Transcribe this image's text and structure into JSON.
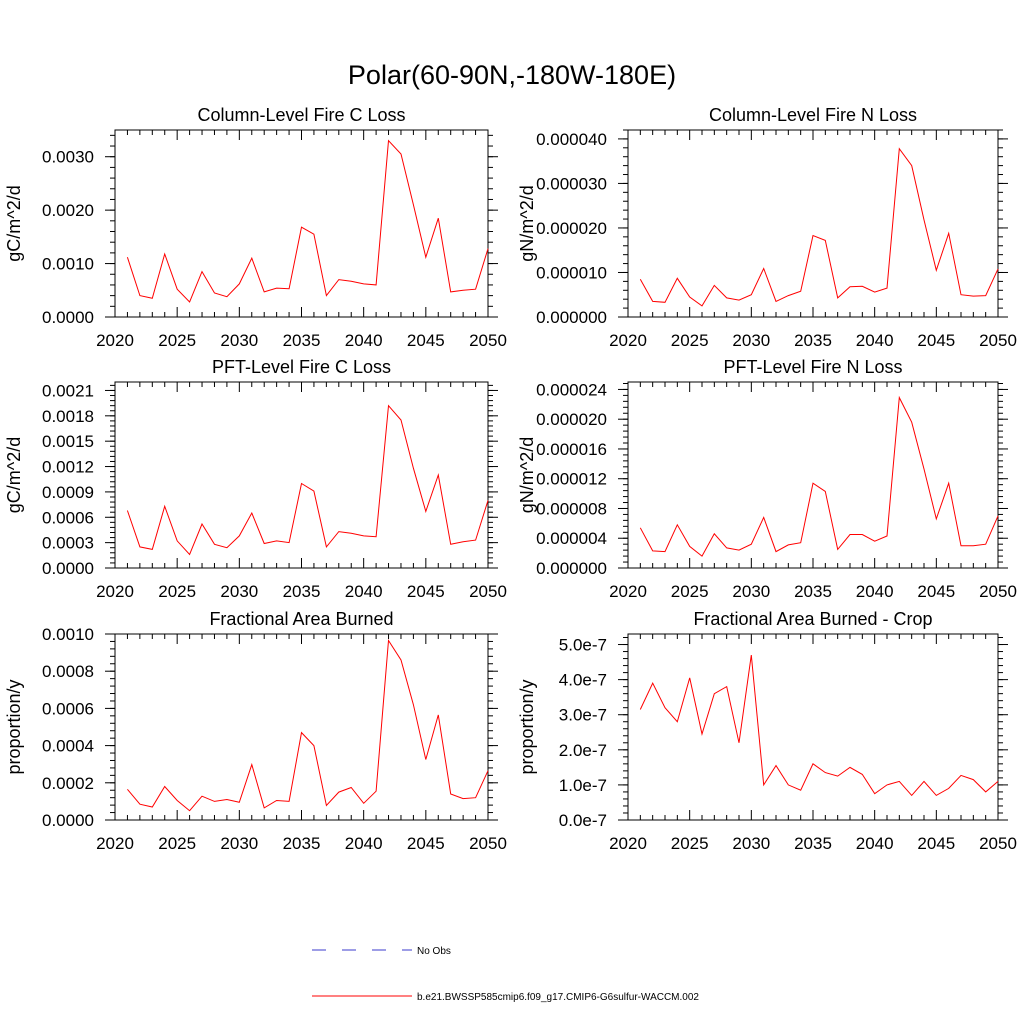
{
  "figure": {
    "title": "Polar(60-90N,-180W-180E)"
  },
  "legend": {
    "entries": [
      {
        "label": "No Obs",
        "color": "#3b3bcc",
        "style": "dashed"
      },
      {
        "label": "b.e21.BWSSP585cmip6.f09_g17.CMIP6-G6sulfur-WACCM.002",
        "color": "#ff0000",
        "style": "solid"
      }
    ]
  },
  "chart_data": [
    {
      "type": "line",
      "title": "Column-Level Fire C Loss",
      "ylabel": "gC/m^2/d",
      "xlim": [
        2020,
        2050
      ],
      "ylim": [
        0,
        0.0035
      ],
      "xticks": [
        2020,
        2025,
        2030,
        2035,
        2040,
        2045,
        2050
      ],
      "xtick_labels": [
        "2020",
        "2025",
        "2030",
        "2035",
        "2040",
        "2045",
        "2050"
      ],
      "yticks": [
        0,
        0.001,
        0.002,
        0.003
      ],
      "ytick_labels": [
        "0.0000",
        "0.0010",
        "0.0020",
        "0.0030"
      ],
      "x": [
        2021,
        2022,
        2023,
        2024,
        2025,
        2026,
        2027,
        2028,
        2029,
        2030,
        2031,
        2032,
        2033,
        2034,
        2035,
        2036,
        2037,
        2038,
        2039,
        2040,
        2041,
        2042,
        2043,
        2044,
        2045,
        2046,
        2047,
        2048,
        2049,
        2050
      ],
      "series": [
        {
          "color": "#ff0000",
          "values": [
            0.00112,
            0.0004,
            0.00035,
            0.00118,
            0.00052,
            0.00028,
            0.00085,
            0.00045,
            0.00038,
            0.00062,
            0.0011,
            0.00047,
            0.00054,
            0.00053,
            0.00168,
            0.00155,
            0.0004,
            0.0007,
            0.00067,
            0.00062,
            0.0006,
            0.0033,
            0.00305,
            0.0021,
            0.00112,
            0.00185,
            0.00047,
            0.0005,
            0.00052,
            0.00128
          ]
        }
      ]
    },
    {
      "type": "line",
      "title": "Column-Level Fire N Loss",
      "ylabel": "gN/m^2/d",
      "xlim": [
        2020,
        2050
      ],
      "ylim": [
        0,
        4.2e-05
      ],
      "xticks": [
        2020,
        2025,
        2030,
        2035,
        2040,
        2045,
        2050
      ],
      "xtick_labels": [
        "2020",
        "2025",
        "2030",
        "2035",
        "2040",
        "2045",
        "2050"
      ],
      "yticks": [
        0,
        1e-05,
        2e-05,
        3e-05,
        4e-05
      ],
      "ytick_labels": [
        "0.000000",
        "0.000010",
        "0.000020",
        "0.000030",
        "0.000040"
      ],
      "x": [
        2021,
        2022,
        2023,
        2024,
        2025,
        2026,
        2027,
        2028,
        2029,
        2030,
        2031,
        2032,
        2033,
        2034,
        2035,
        2036,
        2037,
        2038,
        2039,
        2040,
        2041,
        2042,
        2043,
        2044,
        2045,
        2046,
        2047,
        2048,
        2049,
        2050
      ],
      "series": [
        {
          "color": "#ff0000",
          "values": [
            8.5e-06,
            3.5e-06,
            3.3e-06,
            8.7e-06,
            4.5e-06,
            2.5e-06,
            7.1e-06,
            4.3e-06,
            3.8e-06,
            5e-06,
            1.09e-05,
            3.5e-06,
            4.8e-06,
            5.8e-06,
            1.83e-05,
            1.72e-05,
            4.3e-06,
            6.8e-06,
            6.9e-06,
            5.6e-06,
            6.5e-06,
            3.78e-05,
            3.4e-05,
            2.18e-05,
            1.05e-05,
            1.88e-05,
            5e-06,
            4.7e-06,
            4.8e-06,
            1.08e-05
          ]
        }
      ]
    },
    {
      "type": "line",
      "title": "PFT-Level Fire C Loss",
      "ylabel": "gC/m^2/d",
      "xlim": [
        2020,
        2050
      ],
      "ylim": [
        0,
        0.0022
      ],
      "xticks": [
        2020,
        2025,
        2030,
        2035,
        2040,
        2045,
        2050
      ],
      "xtick_labels": [
        "2020",
        "2025",
        "2030",
        "2035",
        "2040",
        "2045",
        "2050"
      ],
      "yticks": [
        0,
        0.0003,
        0.0006,
        0.0009,
        0.0012,
        0.0015,
        0.0018,
        0.0021
      ],
      "ytick_labels": [
        "0.0000",
        "0.0003",
        "0.0006",
        "0.0009",
        "0.0012",
        "0.0015",
        "0.0018",
        "0.0021"
      ],
      "x": [
        2021,
        2022,
        2023,
        2024,
        2025,
        2026,
        2027,
        2028,
        2029,
        2030,
        2031,
        2032,
        2033,
        2034,
        2035,
        2036,
        2037,
        2038,
        2039,
        2040,
        2041,
        2042,
        2043,
        2044,
        2045,
        2046,
        2047,
        2048,
        2049,
        2050
      ],
      "series": [
        {
          "color": "#ff0000",
          "values": [
            0.00068,
            0.00025,
            0.00022,
            0.00073,
            0.00032,
            0.00016,
            0.00052,
            0.00028,
            0.00024,
            0.00038,
            0.00065,
            0.00029,
            0.00032,
            0.0003,
            0.001,
            0.00091,
            0.00025,
            0.00043,
            0.00041,
            0.00038,
            0.00037,
            0.00192,
            0.00175,
            0.00118,
            0.00067,
            0.0011,
            0.00028,
            0.00031,
            0.00033,
            0.0008
          ]
        }
      ]
    },
    {
      "type": "line",
      "title": "PFT-Level Fire N Loss",
      "ylabel": "gN/m^2/d",
      "xlim": [
        2020,
        2050
      ],
      "ylim": [
        0,
        2.5e-05
      ],
      "xticks": [
        2020,
        2025,
        2030,
        2035,
        2040,
        2045,
        2050
      ],
      "xtick_labels": [
        "2020",
        "2025",
        "2030",
        "2035",
        "2040",
        "2045",
        "2050"
      ],
      "yticks": [
        0,
        4e-06,
        8e-06,
        1.2e-05,
        1.6e-05,
        2e-05,
        2.4e-05
      ],
      "ytick_labels": [
        "0.000000",
        "0.000004",
        "0.000008",
        "0.000012",
        "0.000016",
        "0.000020",
        "0.000024"
      ],
      "x": [
        2021,
        2022,
        2023,
        2024,
        2025,
        2026,
        2027,
        2028,
        2029,
        2030,
        2031,
        2032,
        2033,
        2034,
        2035,
        2036,
        2037,
        2038,
        2039,
        2040,
        2041,
        2042,
        2043,
        2044,
        2045,
        2046,
        2047,
        2048,
        2049,
        2050
      ],
      "series": [
        {
          "color": "#ff0000",
          "values": [
            5.4e-06,
            2.3e-06,
            2.2e-06,
            5.8e-06,
            2.9e-06,
            1.6e-06,
            4.6e-06,
            2.7e-06,
            2.4e-06,
            3.2e-06,
            6.8e-06,
            2.2e-06,
            3.1e-06,
            3.4e-06,
            1.14e-05,
            1.03e-05,
            2.5e-06,
            4.5e-06,
            4.5e-06,
            3.6e-06,
            4.3e-06,
            2.29e-05,
            1.96e-05,
            1.33e-05,
            6.6e-06,
            1.14e-05,
            3e-06,
            3e-06,
            3.2e-06,
            7e-06
          ]
        }
      ]
    },
    {
      "type": "line",
      "title": "Fractional Area Burned",
      "ylabel": "proportion/y",
      "xlim": [
        2020,
        2050
      ],
      "ylim": [
        0,
        0.001
      ],
      "xticks": [
        2020,
        2025,
        2030,
        2035,
        2040,
        2045,
        2050
      ],
      "xtick_labels": [
        "2020",
        "2025",
        "2030",
        "2035",
        "2040",
        "2045",
        "2050"
      ],
      "yticks": [
        0,
        0.0002,
        0.0004,
        0.0006,
        0.0008,
        0.001
      ],
      "ytick_labels": [
        "0.0000",
        "0.0002",
        "0.0004",
        "0.0006",
        "0.0008",
        "0.0010"
      ],
      "x": [
        2021,
        2022,
        2023,
        2024,
        2025,
        2026,
        2027,
        2028,
        2029,
        2030,
        2031,
        2032,
        2033,
        2034,
        2035,
        2036,
        2037,
        2038,
        2039,
        2040,
        2041,
        2042,
        2043,
        2044,
        2045,
        2046,
        2047,
        2048,
        2049,
        2050
      ],
      "series": [
        {
          "color": "#ff0000",
          "values": [
            0.000165,
            8.5e-05,
            7e-05,
            0.00018,
            0.000105,
            5e-05,
            0.000128,
            0.0001,
            0.00011,
            9.5e-05,
            0.000298,
            6.5e-05,
            0.000105,
            0.0001,
            0.00047,
            0.0004,
            7.8e-05,
            0.00015,
            0.000175,
            9e-05,
            0.000155,
            0.000965,
            0.00086,
            0.00062,
            0.000325,
            0.000565,
            0.00014,
            0.000115,
            0.00012,
            0.000265
          ]
        }
      ]
    },
    {
      "type": "line",
      "title": "Fractional Area Burned - Crop",
      "ylabel": "proportion/y",
      "xlim": [
        2020,
        2050
      ],
      "ylim": [
        0,
        5.3e-07
      ],
      "xticks": [
        2020,
        2025,
        2030,
        2035,
        2040,
        2045,
        2050
      ],
      "xtick_labels": [
        "2020",
        "2025",
        "2030",
        "2035",
        "2040",
        "2045",
        "2050"
      ],
      "yticks": [
        0,
        1e-07,
        2e-07,
        3e-07,
        4e-07,
        5e-07
      ],
      "ytick_labels": [
        "0.0e-7",
        "1.0e-7",
        "2.0e-7",
        "3.0e-7",
        "4.0e-7",
        "5.0e-7"
      ],
      "x": [
        2021,
        2022,
        2023,
        2024,
        2025,
        2026,
        2027,
        2028,
        2029,
        2030,
        2031,
        2032,
        2033,
        2034,
        2035,
        2036,
        2037,
        2038,
        2039,
        2040,
        2041,
        2042,
        2043,
        2044,
        2045,
        2046,
        2047,
        2048,
        2049,
        2050
      ],
      "series": [
        {
          "color": "#ff0000",
          "values": [
            3.15e-07,
            3.9e-07,
            3.2e-07,
            2.8e-07,
            4.05e-07,
            2.45e-07,
            3.6e-07,
            3.8e-07,
            2.2e-07,
            4.7e-07,
            1e-07,
            1.55e-07,
            1e-07,
            8.5e-08,
            1.6e-07,
            1.35e-07,
            1.25e-07,
            1.5e-07,
            1.3e-07,
            7.5e-08,
            1e-07,
            1.1e-07,
            7e-08,
            1.1e-07,
            7e-08,
            9e-08,
            1.27e-07,
            1.15e-07,
            8e-08,
            1.1e-07
          ]
        }
      ]
    }
  ]
}
